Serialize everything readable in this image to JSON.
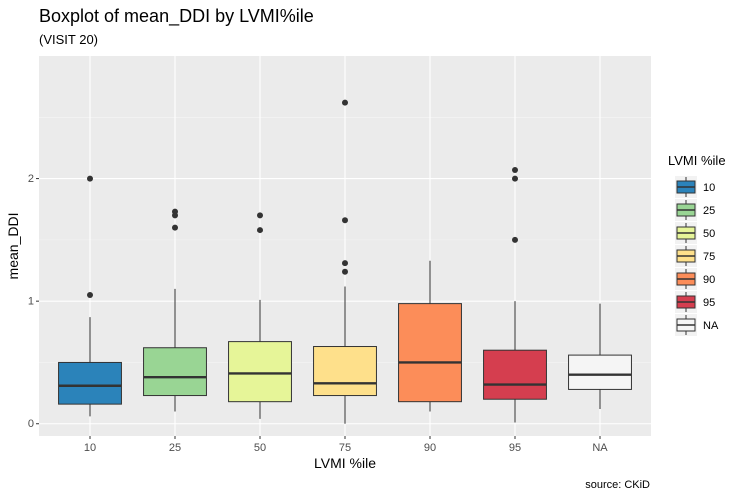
{
  "chart_data": {
    "type": "boxplot",
    "title": "Boxplot of mean_DDI by LVMI%ile",
    "subtitle": "(VISIT 20)",
    "caption": "source: CKiD",
    "xlabel": "LVMI %ile",
    "ylabel": "mean_DDI",
    "ylim": [
      -0.1,
      3.0
    ],
    "yticks": [
      0,
      1,
      2
    ],
    "ytick_labels": [
      "0",
      "1",
      "2"
    ],
    "grid": true,
    "legend": {
      "title": "LVMI %ile",
      "position": "right"
    },
    "categories": [
      "10",
      "25",
      "50",
      "75",
      "90",
      "95",
      "NA"
    ],
    "colors": [
      "#2b83ba",
      "#99d594",
      "#e6f598",
      "#fee08b",
      "#fc8d59",
      "#d53e4f",
      "#f5f5f5"
    ],
    "boxes": [
      {
        "category": "10",
        "min": 0.06,
        "q1": 0.16,
        "median": 0.31,
        "q3": 0.5,
        "max": 0.87,
        "outliers": [
          1.05,
          2.0
        ]
      },
      {
        "category": "25",
        "min": 0.1,
        "q1": 0.23,
        "median": 0.38,
        "q3": 0.62,
        "max": 1.1,
        "outliers": [
          1.6,
          1.7,
          1.73
        ]
      },
      {
        "category": "50",
        "min": 0.04,
        "q1": 0.18,
        "median": 0.41,
        "q3": 0.67,
        "max": 1.01,
        "outliers": [
          1.58,
          1.7
        ]
      },
      {
        "category": "75",
        "min": 0.0,
        "q1": 0.23,
        "median": 0.33,
        "q3": 0.63,
        "max": 1.12,
        "outliers": [
          1.24,
          1.31,
          1.66,
          2.62
        ]
      },
      {
        "category": "90",
        "min": 0.1,
        "q1": 0.18,
        "median": 0.5,
        "q3": 0.98,
        "max": 1.33,
        "outliers": []
      },
      {
        "category": "95",
        "min": 0.01,
        "q1": 0.2,
        "median": 0.32,
        "q3": 0.6,
        "max": 1.0,
        "outliers": [
          1.5,
          2.0,
          2.07
        ]
      },
      {
        "category": "NA",
        "min": 0.12,
        "q1": 0.28,
        "median": 0.4,
        "q3": 0.56,
        "max": 0.98,
        "outliers": []
      }
    ]
  }
}
